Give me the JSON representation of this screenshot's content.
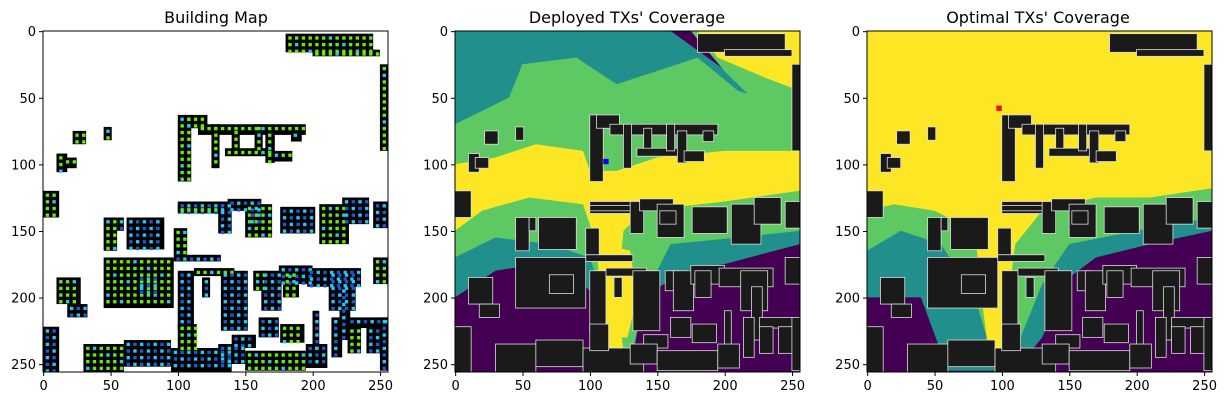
{
  "chart_data": [
    {
      "type": "heatmap",
      "title": "Building Map",
      "xlabel": "",
      "ylabel": "",
      "xlim": [
        0,
        255
      ],
      "ylim": [
        255,
        0
      ],
      "xticks": [
        "0",
        "50",
        "100",
        "150",
        "200",
        "250"
      ],
      "yticks": [
        "0",
        "50",
        "100",
        "150",
        "200",
        "250"
      ],
      "grid": false,
      "legend": "none",
      "colors": {
        "background": "#ffffff",
        "building": "#000000",
        "sensor_green": "#66ee00",
        "sensor_cyan": "#22ccee",
        "sensor_blue": "#2255dd"
      }
    },
    {
      "type": "heatmap",
      "title": "Deployed TXs' Coverage",
      "xlabel": "",
      "ylabel": "",
      "xlim": [
        0,
        255
      ],
      "ylim": [
        255,
        0
      ],
      "xticks": [
        "0",
        "50",
        "100",
        "150",
        "200",
        "250"
      ],
      "yticks": [
        "0",
        "50",
        "100",
        "150",
        "200",
        "250"
      ],
      "grid": false,
      "legend": "none",
      "transmitters": [
        {
          "x": 112,
          "y": 98
        }
      ],
      "colors": {
        "level0": "#440154",
        "level1": "#21908c",
        "level2": "#5ec962",
        "level3": "#fde725",
        "building": "#1a1a1a",
        "tx": "#0000ff"
      }
    },
    {
      "type": "heatmap",
      "title": "Optimal TXs' Coverage",
      "xlabel": "",
      "ylabel": "",
      "xlim": [
        0,
        255
      ],
      "ylim": [
        255,
        0
      ],
      "xticks": [
        "0",
        "50",
        "100",
        "150",
        "200",
        "250"
      ],
      "yticks": [
        "0",
        "50",
        "100",
        "150",
        "200",
        "250"
      ],
      "grid": false,
      "legend": "none",
      "transmitters": [
        {
          "x": 98,
          "y": 58
        }
      ],
      "colors": {
        "level0": "#440154",
        "level1": "#21908c",
        "level2": "#5ec962",
        "level3": "#fde725",
        "building": "#1a1a1a",
        "tx": "#ff0000"
      }
    }
  ]
}
